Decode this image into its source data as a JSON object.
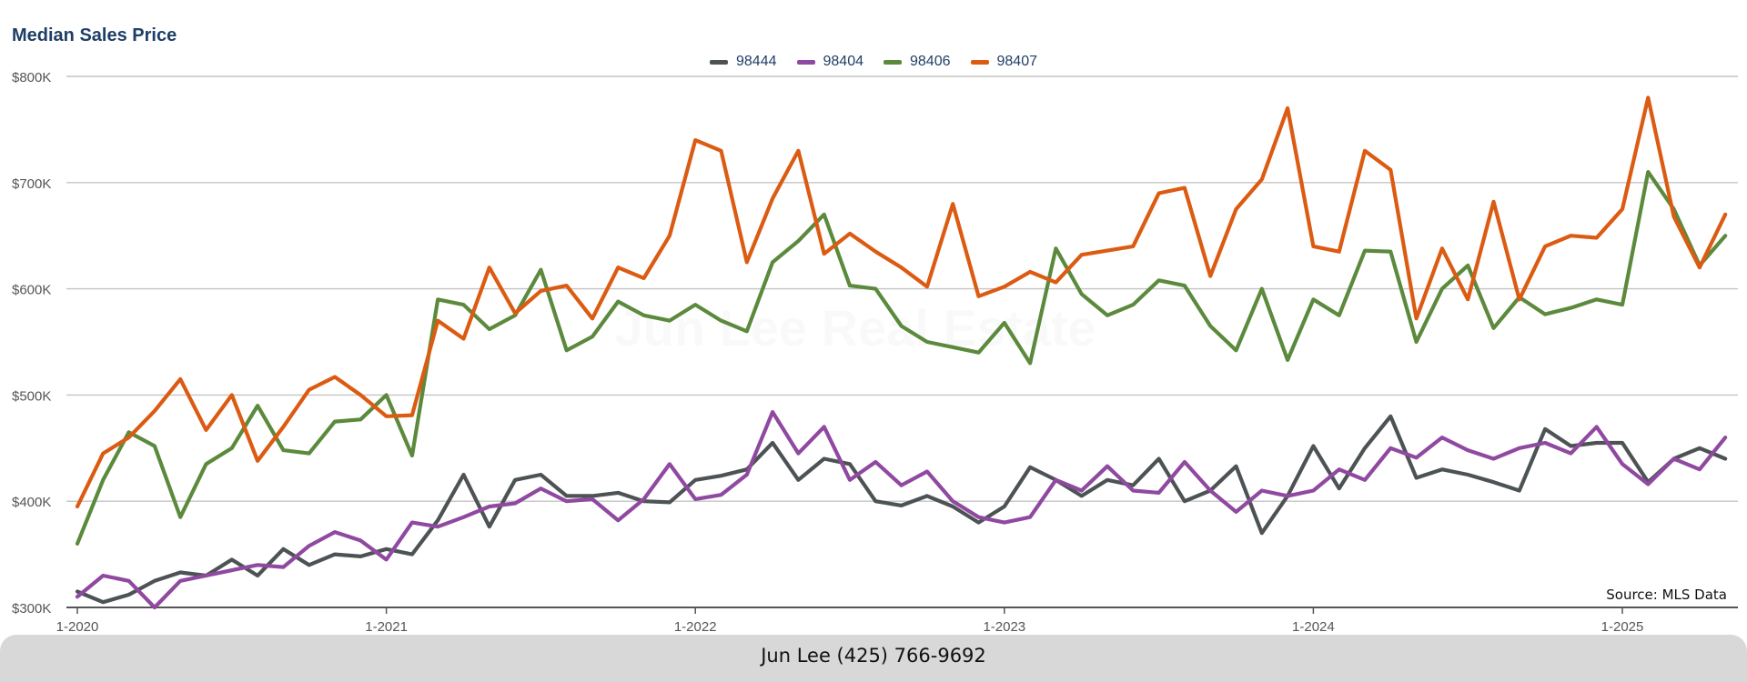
{
  "chart_data": {
    "type": "line",
    "title": "Median Sales Price",
    "source": "Source: MLS Data",
    "watermark": "Jun Lee Real Estate",
    "footer": "Jun Lee (425) 766-9692",
    "ylim": [
      300000,
      800000
    ],
    "yticks": [
      300000,
      400000,
      500000,
      600000,
      700000,
      800000
    ],
    "ytick_labels": [
      "$300K",
      "$400K",
      "$500K",
      "$600K",
      "$700K",
      "$800K"
    ],
    "xtick_labels": [
      "1-2020",
      "1-2021",
      "1-2022",
      "1-2023",
      "1-2024",
      "1-2025"
    ],
    "x": [
      "2020-01",
      "2020-02",
      "2020-03",
      "2020-04",
      "2020-05",
      "2020-06",
      "2020-07",
      "2020-08",
      "2020-09",
      "2020-10",
      "2020-11",
      "2020-12",
      "2021-01",
      "2021-02",
      "2021-03",
      "2021-04",
      "2021-05",
      "2021-06",
      "2021-07",
      "2021-08",
      "2021-09",
      "2021-10",
      "2021-11",
      "2021-12",
      "2022-01",
      "2022-02",
      "2022-03",
      "2022-04",
      "2022-05",
      "2022-06",
      "2022-07",
      "2022-08",
      "2022-09",
      "2022-10",
      "2022-11",
      "2022-12",
      "2023-01",
      "2023-02",
      "2023-03",
      "2023-04",
      "2023-05",
      "2023-06",
      "2023-07",
      "2023-08",
      "2023-09",
      "2023-10",
      "2023-11",
      "2023-12",
      "2024-01",
      "2024-02",
      "2024-03",
      "2024-04",
      "2024-05",
      "2024-06",
      "2024-07",
      "2024-08",
      "2024-09",
      "2024-10",
      "2024-11",
      "2024-12",
      "2025-01",
      "2025-02",
      "2025-03",
      "2025-04",
      "2025-05"
    ],
    "grid": true,
    "legend_position": "top-center",
    "series": [
      {
        "name": "98444",
        "color": "#4d5355",
        "values": [
          315000,
          305000,
          312000,
          325000,
          333000,
          330000,
          345000,
          330000,
          355000,
          340000,
          350000,
          348000,
          355000,
          350000,
          382000,
          425000,
          376000,
          420000,
          425000,
          405000,
          405000,
          408000,
          400000,
          399000,
          420000,
          424000,
          430000,
          455000,
          420000,
          440000,
          435000,
          400000,
          396000,
          405000,
          395000,
          380000,
          395000,
          432000,
          420000,
          405000,
          420000,
          415000,
          440000,
          400000,
          410000,
          433000,
          370000,
          405000,
          452000,
          412000,
          450000,
          480000,
          422000,
          430000,
          425000,
          418000,
          410000,
          468000,
          452000,
          455000,
          455000,
          418000,
          440000,
          450000,
          440000
        ]
      },
      {
        "name": "98404",
        "color": "#9049a0",
        "values": [
          310000,
          330000,
          325000,
          300000,
          325000,
          330000,
          335000,
          340000,
          338000,
          358000,
          371000,
          363000,
          345000,
          380000,
          376000,
          385000,
          395000,
          398000,
          412000,
          400000,
          402000,
          382000,
          402000,
          435000,
          402000,
          406000,
          425000,
          484000,
          445000,
          470000,
          420000,
          437000,
          415000,
          428000,
          400000,
          385000,
          380000,
          385000,
          420000,
          410000,
          433000,
          410000,
          408000,
          437000,
          410000,
          390000,
          410000,
          405000,
          410000,
          430000,
          420000,
          450000,
          441000,
          460000,
          448000,
          440000,
          450000,
          455000,
          445000,
          470000,
          435000,
          416000,
          440000,
          430000,
          460000
        ]
      },
      {
        "name": "98406",
        "color": "#5c8a3d",
        "values": [
          360000,
          420000,
          465000,
          452000,
          385000,
          435000,
          450000,
          490000,
          448000,
          445000,
          475000,
          477000,
          500000,
          443000,
          590000,
          585000,
          562000,
          575000,
          618000,
          542000,
          555000,
          588000,
          575000,
          570000,
          585000,
          570000,
          560000,
          625000,
          645000,
          670000,
          603000,
          600000,
          565000,
          550000,
          545000,
          540000,
          568000,
          530000,
          638000,
          595000,
          575000,
          585000,
          608000,
          603000,
          565000,
          542000,
          600000,
          533000,
          590000,
          575000,
          636000,
          635000,
          550000,
          600000,
          622000,
          563000,
          592000,
          576000,
          582000,
          590000,
          585000,
          710000,
          675000,
          622000,
          650000
        ]
      },
      {
        "name": "98407",
        "color": "#dc5b12",
        "values": [
          395000,
          445000,
          460000,
          485000,
          515000,
          467000,
          500000,
          438000,
          470000,
          505000,
          517000,
          500000,
          480000,
          481000,
          570000,
          553000,
          620000,
          577000,
          598000,
          603000,
          572000,
          620000,
          610000,
          650000,
          740000,
          730000,
          625000,
          685000,
          730000,
          633000,
          652000,
          635000,
          620000,
          602000,
          680000,
          593000,
          602000,
          616000,
          606000,
          632000,
          636000,
          640000,
          690000,
          695000,
          612000,
          675000,
          703000,
          770000,
          640000,
          635000,
          730000,
          712000,
          572000,
          638000,
          590000,
          682000,
          590000,
          640000,
          650000,
          648000,
          675000,
          780000,
          668000,
          620000,
          670000
        ]
      }
    ]
  }
}
